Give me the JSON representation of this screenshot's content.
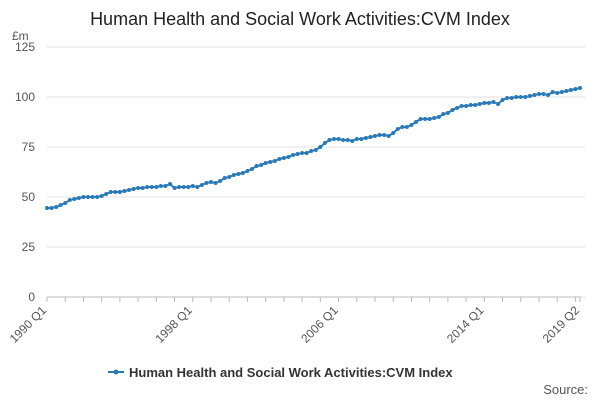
{
  "chart_data": {
    "type": "line",
    "title": "Human Health and Social Work Activities:CVM Index",
    "y_unit": "£m",
    "source": "Source:",
    "categories": [
      "1990 Q1",
      null,
      null,
      null,
      null,
      null,
      null,
      null,
      null,
      null,
      null,
      null,
      null,
      null,
      null,
      null,
      null,
      null,
      null,
      null,
      null,
      null,
      null,
      null,
      null,
      null,
      null,
      null,
      null,
      null,
      null,
      null,
      "1998 Q1",
      null,
      null,
      null,
      null,
      null,
      null,
      null,
      null,
      null,
      null,
      null,
      null,
      null,
      null,
      null,
      null,
      null,
      null,
      null,
      null,
      null,
      null,
      null,
      null,
      null,
      null,
      null,
      null,
      null,
      null,
      null,
      "2006 Q1",
      null,
      null,
      null,
      null,
      null,
      null,
      null,
      null,
      null,
      null,
      null,
      null,
      null,
      null,
      null,
      null,
      null,
      null,
      null,
      null,
      null,
      null,
      null,
      null,
      null,
      null,
      null,
      null,
      null,
      null,
      null,
      "2014 Q1",
      null,
      null,
      null,
      null,
      null,
      null,
      null,
      null,
      null,
      null,
      null,
      null,
      null,
      null,
      null,
      null,
      null,
      null,
      null,
      null,
      "2019 Q2"
    ],
    "series": [
      {
        "name": "Human Health and Social Work Activities:CVM Index",
        "color": "#2a7ab8",
        "values": [
          44.5,
          44.5,
          45,
          46,
          47,
          48.5,
          49,
          49.5,
          50,
          50,
          50,
          50,
          50.5,
          51.5,
          52.5,
          52.5,
          52.5,
          53,
          53.5,
          54,
          54.5,
          54.5,
          55,
          55,
          55,
          55.5,
          55.5,
          56.5,
          54.5,
          55,
          55,
          55,
          55.5,
          55,
          56,
          57,
          57.5,
          57,
          58,
          59.5,
          60,
          61,
          61.5,
          62,
          63,
          64,
          65.5,
          66,
          67,
          67.5,
          68,
          69,
          69.5,
          70,
          71,
          71.5,
          72,
          72,
          73,
          73.5,
          75,
          77,
          78.5,
          79,
          79,
          78.5,
          78.5,
          78,
          79,
          79,
          79.5,
          80,
          80.5,
          81,
          81,
          80.5,
          82,
          84,
          85,
          85,
          86,
          87.5,
          89,
          89,
          89,
          89.5,
          90,
          91.5,
          92,
          93.5,
          94.5,
          95.5,
          95.5,
          96,
          96,
          96.5,
          97,
          97,
          97.5,
          96.5,
          98.5,
          99.5,
          99.5,
          100,
          100,
          100,
          100.5,
          101,
          101.5,
          101.5,
          101,
          102.5,
          102,
          102.5,
          103,
          103.5,
          104,
          104.5
        ]
      }
    ],
    "ylim": [
      0,
      125
    ],
    "yticks": [
      0,
      25,
      50,
      75,
      100,
      125
    ],
    "grid": true
  }
}
